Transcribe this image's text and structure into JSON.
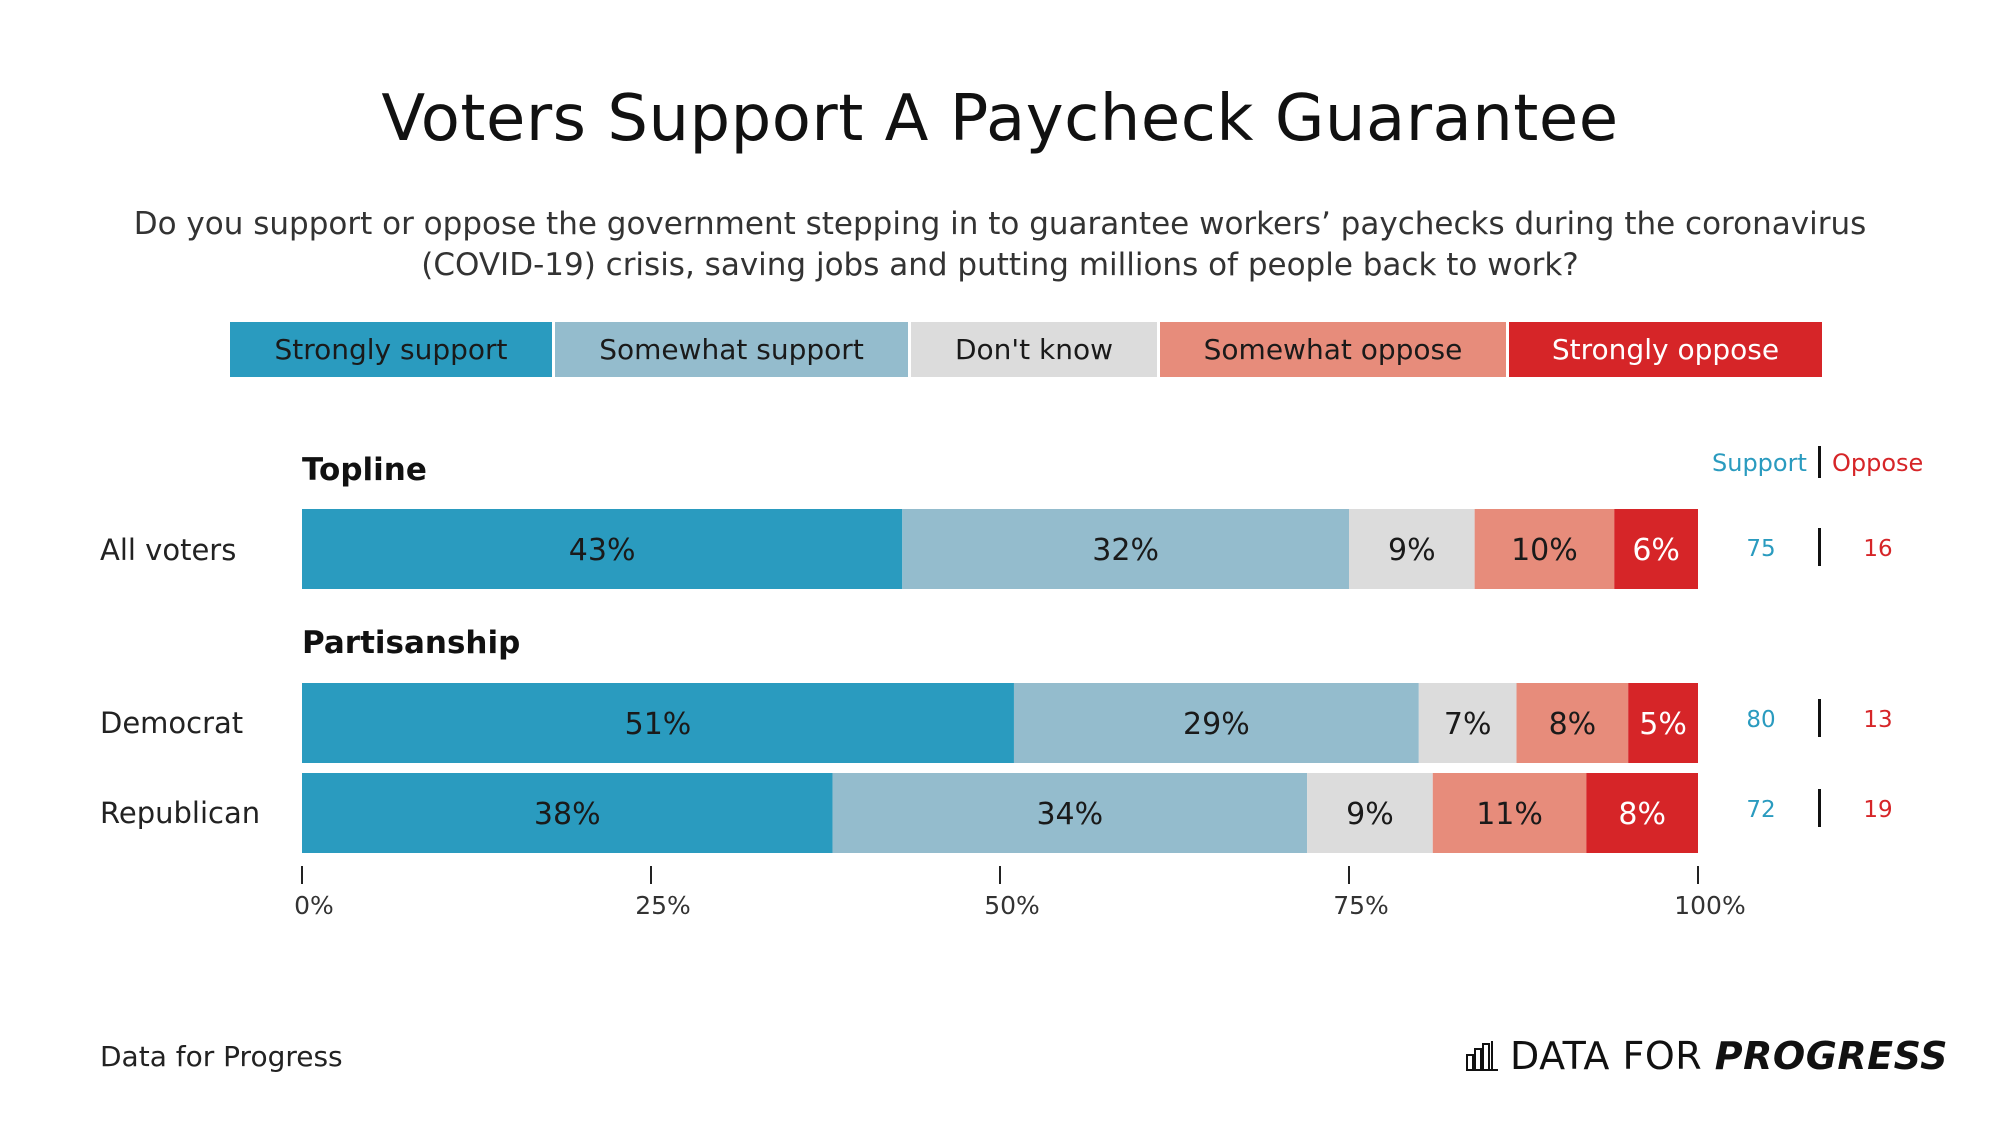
{
  "title": "Voters Support A Paycheck Guarantee",
  "subtitle_line1": "Do you support or oppose the government stepping in to guarantee workers’ paychecks during the coronavirus",
  "subtitle_line2": "(COVID-19) crisis, saving jobs and putting millions of people back to work?",
  "legend": [
    {
      "label": "Strongly support",
      "color": "#2a9bbf",
      "text_color": "#1a1a1a"
    },
    {
      "label": "Somewhat support",
      "color": "#94bccd",
      "text_color": "#1a1a1a"
    },
    {
      "label": "Don't know",
      "color": "#dcdcdc",
      "text_color": "#1a1a1a"
    },
    {
      "label": "Somewhat oppose",
      "color": "#e78c7b",
      "text_color": "#1a1a1a"
    },
    {
      "label": "Strongly oppose",
      "color": "#d62528",
      "text_color": "#ffffff"
    }
  ],
  "sections": {
    "topline": "Topline",
    "partisanship": "Partisanship"
  },
  "summary_header": {
    "support": "Support",
    "oppose": "Oppose",
    "support_color": "#2a9bbf",
    "oppose_color": "#d62528"
  },
  "footer": {
    "source": "Data for Progress",
    "brand_plain": "DATA FOR",
    "brand_bold": "PROGRESS"
  },
  "chart_data": {
    "type": "bar",
    "orientation": "horizontal-stacked",
    "xlim": [
      0,
      100
    ],
    "x_ticks": [
      "0%",
      "25%",
      "50%",
      "75%",
      "100%"
    ],
    "categories": [
      "All voters",
      "Democrat",
      "Republican"
    ],
    "series": [
      {
        "name": "Strongly support",
        "values": [
          43,
          51,
          38
        ],
        "labels": [
          "43%",
          "51%",
          "38%"
        ]
      },
      {
        "name": "Somewhat support",
        "values": [
          32,
          29,
          34
        ],
        "labels": [
          "32%",
          "29%",
          "34%"
        ]
      },
      {
        "name": "Don't know",
        "values": [
          9,
          7,
          9
        ],
        "labels": [
          "9%",
          "7%",
          "9%"
        ]
      },
      {
        "name": "Somewhat oppose",
        "values": [
          10,
          8,
          11
        ],
        "labels": [
          "10%",
          "8%",
          "11%"
        ]
      },
      {
        "name": "Strongly oppose",
        "values": [
          6,
          5,
          8
        ],
        "labels": [
          "6%",
          "5%",
          "8%"
        ]
      }
    ],
    "support_totals": [
      75,
      80,
      72
    ],
    "oppose_totals": [
      16,
      13,
      19
    ]
  }
}
